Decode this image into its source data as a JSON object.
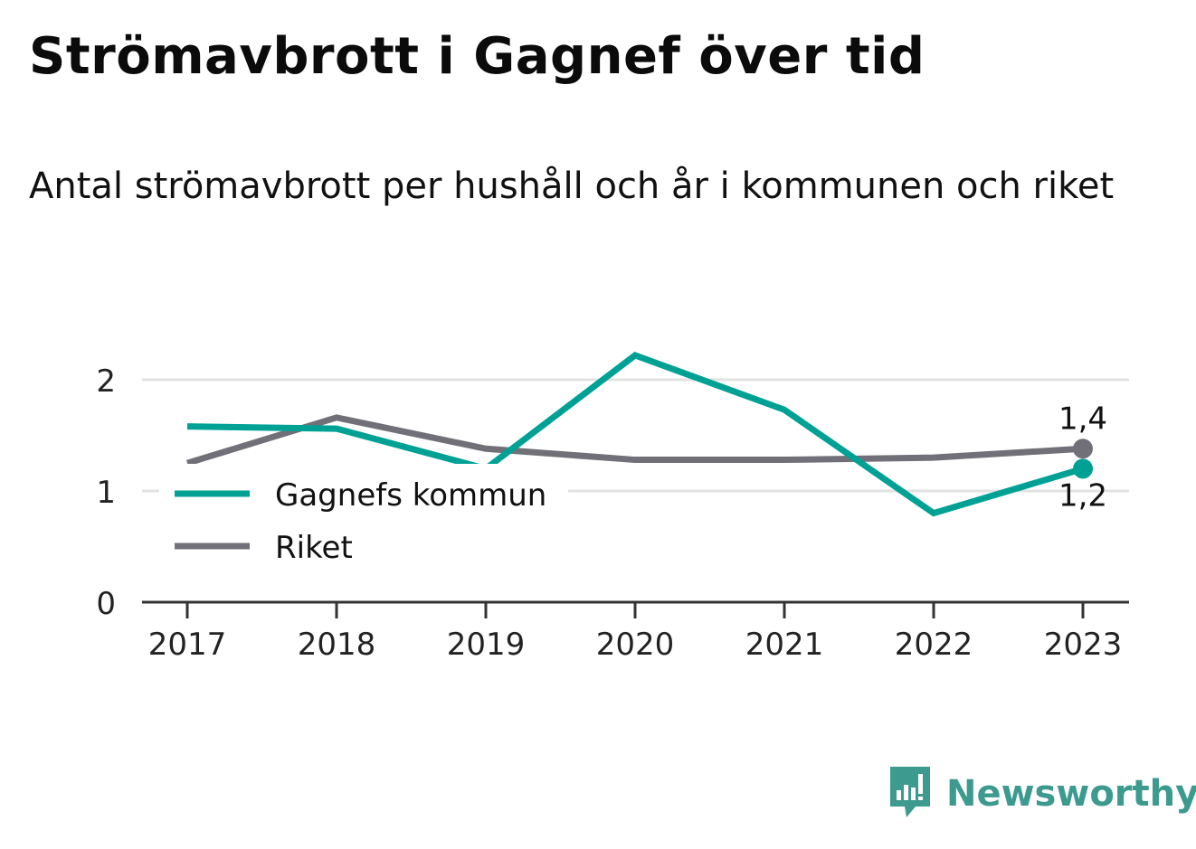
{
  "title": "Strömavbrott i Gagnef över tid",
  "subtitle": "Antal strömavbrott per hushåll och år i kommunen och riket",
  "brand": {
    "name": "Newsworthy",
    "logo_icon": "bar-chart-speech-bubble-icon"
  },
  "colors": {
    "gagnef": "#00a195",
    "riket": "#717078",
    "grid": "#e2e2e2",
    "axis": "#333333",
    "brand": "#3c9a8f"
  },
  "chart_data": {
    "type": "line",
    "x": [
      "2017",
      "2018",
      "2019",
      "2020",
      "2021",
      "2022",
      "2023"
    ],
    "ylim": [
      0,
      2.3
    ],
    "yticks": [
      {
        "value": 0,
        "label": "0"
      },
      {
        "value": 1,
        "label": "1"
      },
      {
        "value": 2,
        "label": "2"
      }
    ],
    "grid": true,
    "legend_position": "bottom-left",
    "series": [
      {
        "key": "gagnef",
        "name": "Gagnefs kommun",
        "values": [
          1.58,
          1.56,
          1.2,
          2.22,
          1.73,
          0.8,
          1.2
        ],
        "end_label": "1,2"
      },
      {
        "key": "riket",
        "name": "Riket",
        "values": [
          1.25,
          1.66,
          1.38,
          1.28,
          1.28,
          1.3,
          1.38
        ],
        "end_label": "1,4"
      }
    ]
  }
}
